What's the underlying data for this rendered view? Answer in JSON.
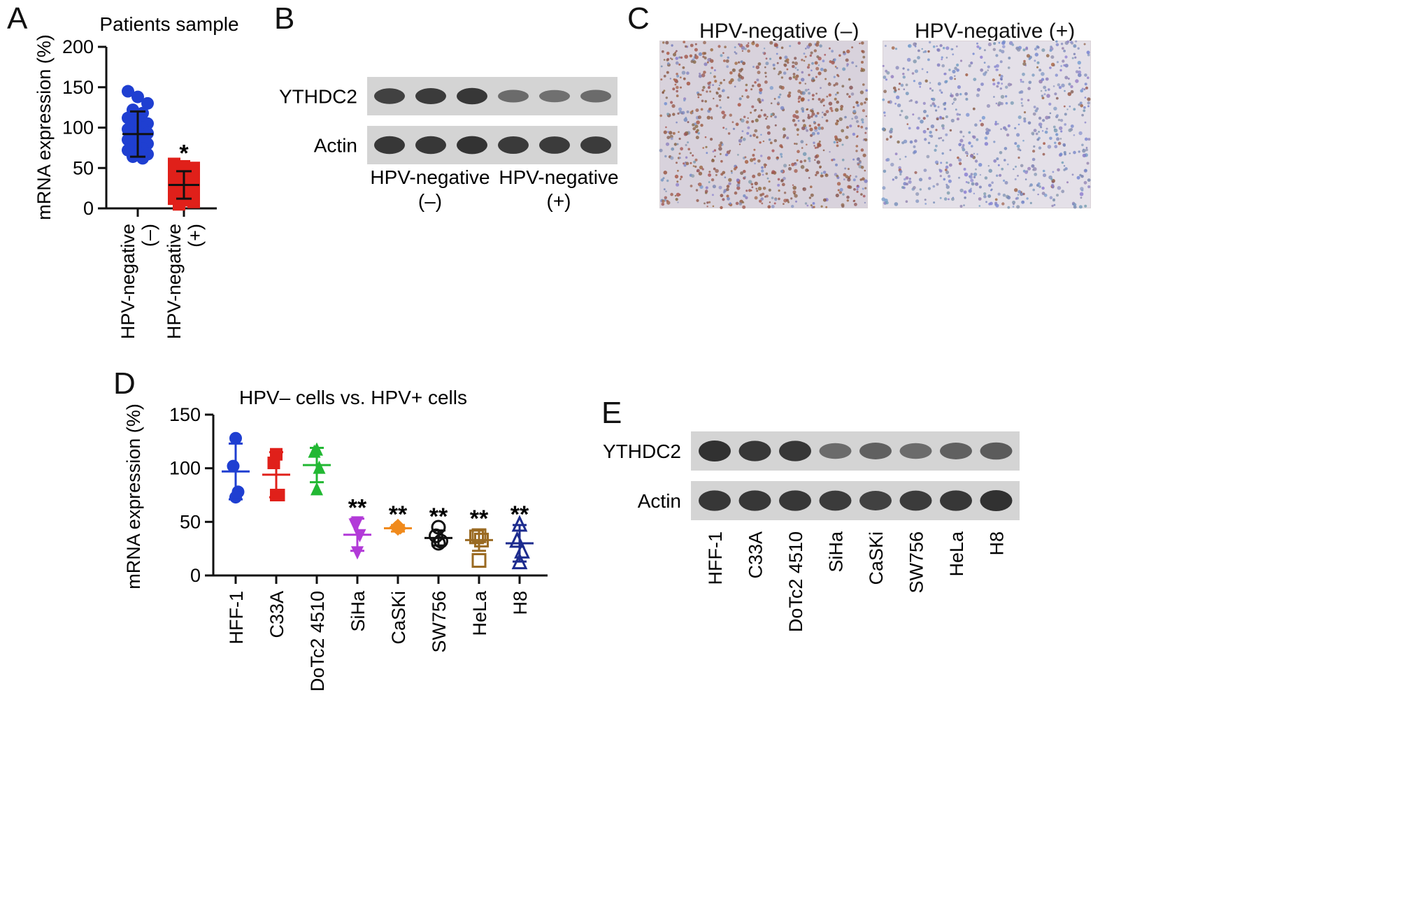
{
  "panels": {
    "a": {
      "label": "A"
    },
    "b": {
      "label": "B"
    },
    "c": {
      "label": "C"
    },
    "d": {
      "label": "D"
    },
    "e": {
      "label": "E"
    }
  },
  "chart_data": [
    {
      "id": "A",
      "type": "scatter",
      "title": "Patients sample",
      "ylabel": "mRNA expression (%)",
      "xlabel": "",
      "ylim": [
        0,
        200
      ],
      "yticks": [
        0,
        50,
        100,
        150,
        200
      ],
      "grid": false,
      "categories": [
        "HPV-negative\n(–)",
        "HPV-negative\n(+)"
      ],
      "groups": [
        {
          "name": "HPV-negative (–)",
          "color": "#1f3fd1",
          "marker": "circle",
          "values": [
            145,
            138,
            130,
            122,
            118,
            112,
            110,
            105,
            102,
            100,
            98,
            95,
            93,
            90,
            88,
            85,
            82,
            80,
            78,
            74,
            72,
            70,
            67,
            64,
            62
          ],
          "mean": 92,
          "sd": 28,
          "significance": ""
        },
        {
          "name": "HPV-negative (+)",
          "color": "#e0201a",
          "marker": "square",
          "values": [
            55,
            52,
            50,
            47,
            45,
            42,
            40,
            38,
            36,
            34,
            32,
            30,
            28,
            26,
            24,
            22,
            20,
            18,
            16,
            14,
            12,
            10,
            8,
            5
          ],
          "mean": 29,
          "sd": 17,
          "significance": "*"
        }
      ]
    },
    {
      "id": "D",
      "type": "scatter",
      "title": "HPV– cells vs. HPV+ cells",
      "ylabel": "mRNA expression (%)",
      "xlabel": "",
      "ylim": [
        0,
        150
      ],
      "yticks": [
        0,
        50,
        100,
        150
      ],
      "grid": false,
      "categories": [
        "HFF-1",
        "C33A",
        "DoTc2 4510",
        "SiHa",
        "CaSKi",
        "SW756",
        "HeLa",
        "H8"
      ],
      "groups": [
        {
          "name": "HFF-1",
          "color": "#1f3fd1",
          "marker": "circle",
          "values": [
            128,
            102,
            78,
            73
          ],
          "mean": 97,
          "sd": 26,
          "significance": ""
        },
        {
          "name": "C33A",
          "color": "#e0201a",
          "marker": "square",
          "values": [
            113,
            105,
            75,
            75
          ],
          "mean": 94,
          "sd": 21,
          "significance": ""
        },
        {
          "name": "DoTc2 4510",
          "color": "#22b833",
          "marker": "triangle",
          "values": [
            117,
            115,
            100,
            80
          ],
          "mean": 103,
          "sd": 16,
          "significance": ""
        },
        {
          "name": "SiHa",
          "color": "#b23ad8",
          "marker": "triangle-down",
          "values": [
            50,
            48,
            38,
            22
          ],
          "mean": 38,
          "sd": 15,
          "significance": "**"
        },
        {
          "name": "CaSKi",
          "color": "#f08a1c",
          "marker": "diamond",
          "values": [
            47,
            45,
            44,
            43
          ],
          "mean": 44,
          "sd": 3,
          "significance": "**"
        },
        {
          "name": "SW756",
          "color": "#111111",
          "marker": "open-circle",
          "values": [
            45,
            37,
            32,
            30
          ],
          "mean": 35,
          "sd": 7,
          "significance": "**"
        },
        {
          "name": "HeLa",
          "color": "#9a6a22",
          "marker": "open-square",
          "values": [
            37,
            36,
            33,
            14
          ],
          "mean": 33,
          "sd": 10,
          "significance": "**"
        },
        {
          "name": "H8",
          "color": "#1c2b8e",
          "marker": "open-triangle",
          "values": [
            47,
            32,
            22,
            12
          ],
          "mean": 30,
          "sd": 17,
          "significance": "**"
        }
      ]
    }
  ],
  "blot_b": {
    "rows": [
      {
        "label": "YTHDC2",
        "intensity": [
          0.85,
          0.9,
          0.95,
          0.45,
          0.4,
          0.45
        ]
      },
      {
        "label": "Actin",
        "intensity": [
          0.95,
          0.95,
          0.98,
          0.92,
          0.9,
          0.9
        ]
      }
    ],
    "groups": [
      {
        "line1": "HPV-negative",
        "line2": "(–)"
      },
      {
        "line1": "HPV-negative",
        "line2": "(+)"
      }
    ]
  },
  "ihc_c": {
    "left_title": "HPV-negative (–)",
    "right_title": "HPV-negative (+)"
  },
  "blot_e": {
    "rows": [
      {
        "label": "YTHDC2",
        "intensity": [
          1.0,
          0.95,
          0.95,
          0.45,
          0.55,
          0.45,
          0.55,
          0.6
        ]
      },
      {
        "label": "Actin",
        "intensity": [
          0.95,
          0.95,
          0.95,
          0.9,
          0.85,
          0.9,
          0.95,
          1.0
        ]
      }
    ],
    "lanes": [
      "HFF-1",
      "C33A",
      "DoTc2 4510",
      "SiHa",
      "CaSKi",
      "SW756",
      "HeLa",
      "H8"
    ]
  }
}
